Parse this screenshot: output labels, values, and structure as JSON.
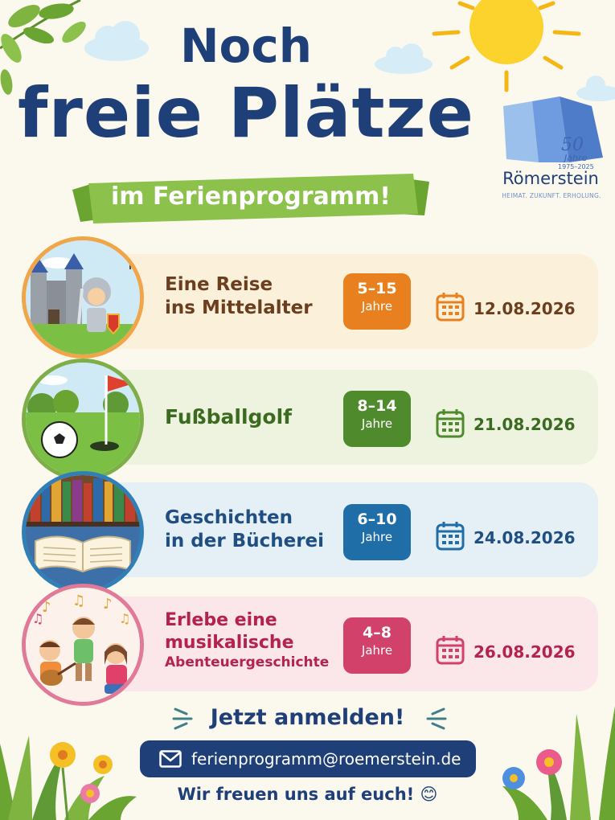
{
  "header": {
    "title_line1": "Noch",
    "title_line2": "freie Plätze",
    "subtitle": "im Ferienprogramm!"
  },
  "logo": {
    "anniversary_number": "50",
    "anniversary_word": "Jahre",
    "years": "1975–2025",
    "name": "Römerstein",
    "tagline": "HEIMAT. ZUKUNFT. ERHOLUNG."
  },
  "events": [
    {
      "title": [
        "Eine Reise",
        "ins Mittelalter"
      ],
      "age_range": "5–15",
      "age_unit": "Jahre",
      "date": "12.08.2026",
      "image": "knight-castle",
      "color": "#e8801f",
      "bg": "#fbf0da",
      "title_color": "#6b3e1e"
    },
    {
      "title": [
        "Fußballgolf"
      ],
      "age_range": "8–14",
      "age_unit": "Jahre",
      "date": "21.08.2026",
      "image": "football-golf",
      "color": "#4f8a2c",
      "bg": "#eef3e0",
      "title_color": "#3b6b1f"
    },
    {
      "title": [
        "Geschichten",
        "in der Bücherei"
      ],
      "age_range": "6–10",
      "age_unit": "Jahre",
      "date": "24.08.2026",
      "image": "open-book-library",
      "color": "#1f6ea8",
      "bg": "#e4eff6",
      "title_color": "#1f4f82"
    },
    {
      "title": [
        "Erlebe eine",
        "musikalische",
        "Abenteuergeschichte"
      ],
      "age_range": "4–8",
      "age_unit": "Jahre",
      "date": "26.08.2026",
      "image": "children-music",
      "color": "#d2416a",
      "bg": "#fbe6ea",
      "title_color": "#b32250"
    }
  ],
  "footer": {
    "cta": "Jetzt anmelden!",
    "email": "ferienprogramm@roemerstein.de",
    "closing": "Wir freuen uns auf euch! 😊"
  }
}
